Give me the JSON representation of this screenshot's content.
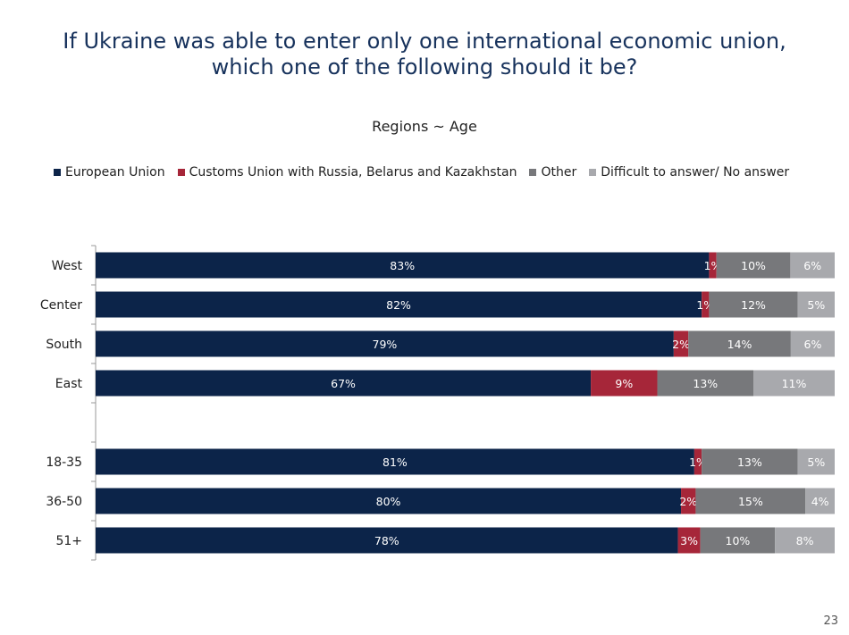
{
  "title_line1": "If Ukraine was able to enter only one international economic union,",
  "title_line2": "which one of the following should it be?",
  "page_number": "23",
  "chart_data": {
    "type": "bar",
    "orientation": "horizontal",
    "stacked": true,
    "percent_stacked": true,
    "title": "Regions ~ Age",
    "xlabel": "",
    "ylabel": "",
    "xlim": [
      0,
      100
    ],
    "grid": false,
    "legend_position": "top",
    "categories": [
      "West",
      "Center",
      "South",
      "East",
      "18-35",
      "36-50",
      "51+"
    ],
    "groups": [
      [
        "West",
        "Center",
        "South",
        "East"
      ],
      [
        "18-35",
        "36-50",
        "51+"
      ]
    ],
    "series": [
      {
        "name": "European Union",
        "color": "#0c2449",
        "values": [
          83,
          82,
          79,
          67,
          81,
          80,
          78
        ]
      },
      {
        "name": "Customs Union with Russia, Belarus and Kazakhstan",
        "color": "#a62639",
        "values": [
          1,
          1,
          2,
          9,
          1,
          2,
          3
        ]
      },
      {
        "name": "Other",
        "color": "#77787b",
        "values": [
          10,
          12,
          14,
          13,
          13,
          15,
          10
        ]
      },
      {
        "name": "Difficult to answer/ No answer",
        "color": "#a8a9ad",
        "values": [
          6,
          5,
          6,
          11,
          5,
          4,
          8
        ]
      }
    ],
    "value_suffix": "%"
  }
}
